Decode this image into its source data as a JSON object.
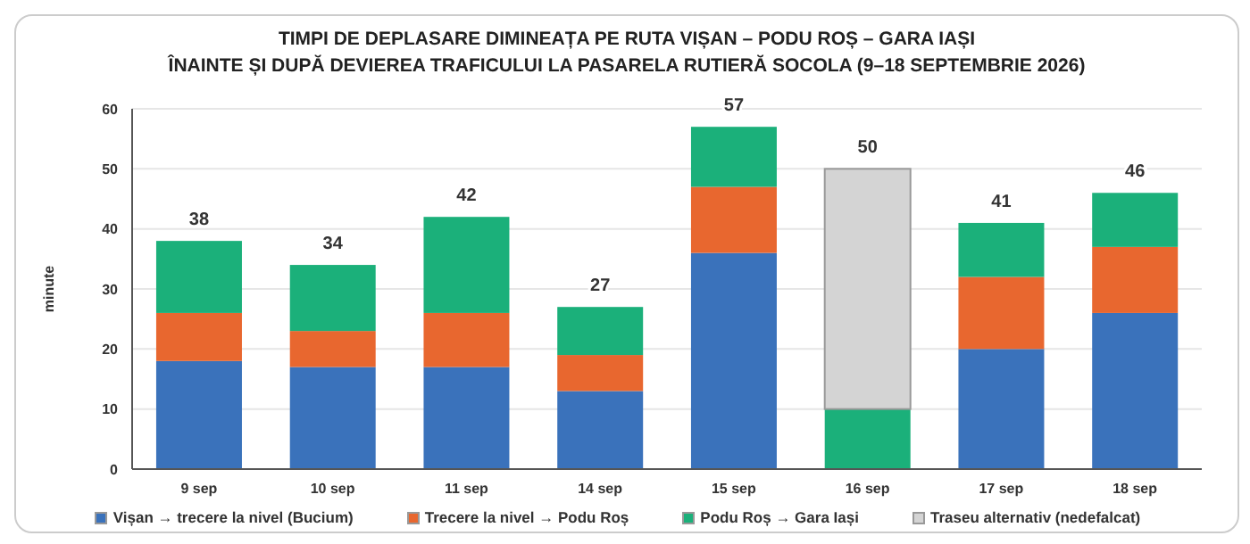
{
  "chart_data": {
    "type": "bar",
    "title": "TIMPI DE DEPLASARE DIMINEAȚA PE RUTA VIȘAN – PODU ROȘ – GARA IAȘI",
    "subtitle": "ÎNAINTE ȘI DUPĂ DEVIEREA TRAFICULUI LA PASARELA RUTIERĂ SOCOLA (9–18 SEPTEMBRIE 2026)",
    "ylabel": "minute",
    "categories": [
      "9 sep",
      "10 sep",
      "11 sep",
      "14 sep",
      "15 sep",
      "16 sep",
      "17 sep",
      "18 sep"
    ],
    "series": [
      {
        "name": "Vișan → trecere la nivel (Bucium)",
        "color": "#3a72bb",
        "values": [
          18,
          17,
          17,
          13,
          36,
          null,
          20,
          26
        ]
      },
      {
        "name": "Trecere la nivel → Podu Roș",
        "color": "#e8672f",
        "values": [
          8,
          6,
          9,
          6,
          11,
          null,
          12,
          11
        ]
      },
      {
        "name": "Podu Roș → Gara Iași",
        "color": "#1bb07a",
        "values": [
          12,
          11,
          16,
          8,
          10,
          10,
          9,
          9
        ]
      },
      {
        "name": "Traseu alternativ (nedefalcat)",
        "color": "#d4d4d4",
        "values": [
          null,
          null,
          null,
          null,
          null,
          40,
          null,
          null
        ]
      }
    ],
    "stacked": true,
    "totals": [
      "38",
      "34",
      "42",
      "27",
      "57",
      "50",
      "41",
      "46"
    ],
    "ylim": [
      0,
      60
    ],
    "yticks": [
      0,
      10,
      20,
      30,
      40,
      50,
      60
    ],
    "grid": "y",
    "legend": "bottom"
  }
}
